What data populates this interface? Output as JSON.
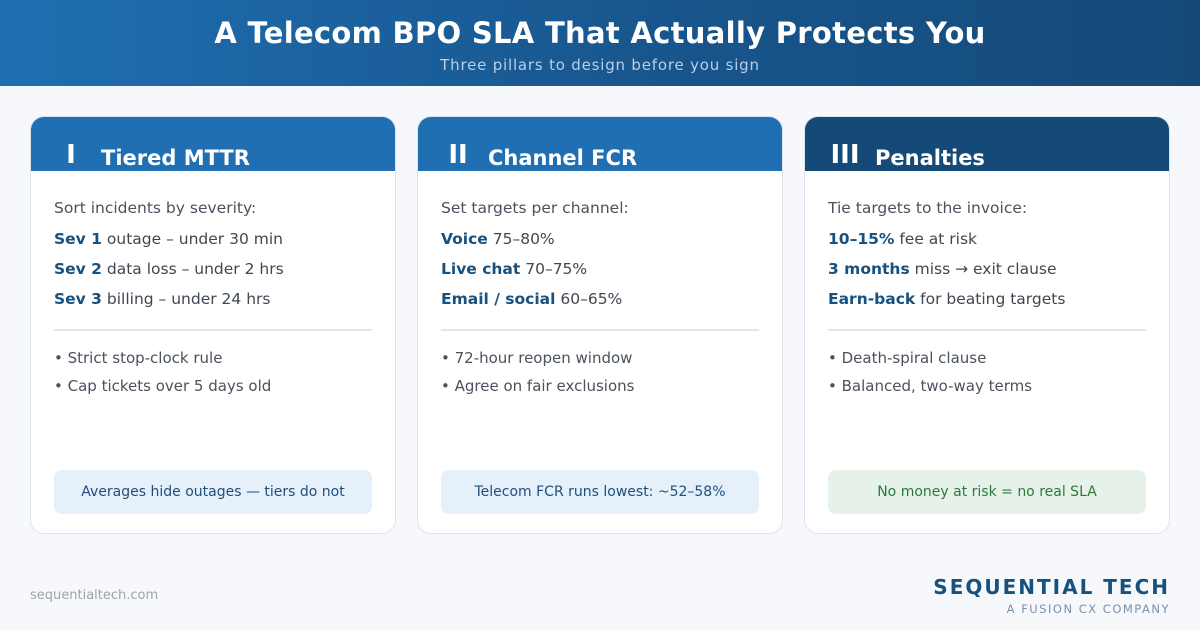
{
  "header": {
    "title": "A Telecom BPO SLA That Actually Protects You",
    "subtitle": "Three pillars to design before you sign"
  },
  "colors": {
    "header_blue": "#1f6fb2",
    "header_dark": "#154a78",
    "accent_text": "#17517f",
    "note_green": "#2a7a3b"
  },
  "cards": [
    {
      "numeral": "I",
      "title": "Tiered MTTR",
      "intro": "Sort incidents by severity:",
      "rows": [
        {
          "bold": "Sev 1",
          "text": " outage – under 30 min"
        },
        {
          "bold": "Sev 2",
          "text": " data loss – under 2 hrs"
        },
        {
          "bold": "Sev 3",
          "text": " billing – under 24 hrs"
        }
      ],
      "bullets": [
        "• Strict stop-clock rule",
        "• Cap tickets over 5 days old"
      ],
      "note": "Averages hide outages — tiers do not"
    },
    {
      "numeral": "II",
      "title": "Channel FCR",
      "intro": "Set targets per channel:",
      "rows": [
        {
          "bold": "Voice",
          "text": " 75–80%"
        },
        {
          "bold": "Live chat",
          "text": " 70–75%"
        },
        {
          "bold": "Email / social",
          "text": " 60–65%"
        }
      ],
      "bullets": [
        "• 72-hour reopen window",
        "• Agree on fair exclusions"
      ],
      "note": "Telecom FCR runs lowest: ~52–58%"
    },
    {
      "numeral": "III",
      "title": "Penalties",
      "intro": "Tie targets to the invoice:",
      "rows": [
        {
          "bold": "10–15%",
          "text": " fee at risk"
        },
        {
          "bold": "3 months",
          "text": " miss → exit clause"
        },
        {
          "bold": "Earn-back",
          "text": " for beating targets"
        }
      ],
      "bullets": [
        "• Death-spiral clause",
        "• Balanced, two-way terms"
      ],
      "note": "No money at risk = no real SLA"
    }
  ],
  "footer": {
    "url": "sequentialtech.com",
    "brand": "SEQUENTIAL TECH",
    "tagline": "A FUSION CX COMPANY"
  }
}
